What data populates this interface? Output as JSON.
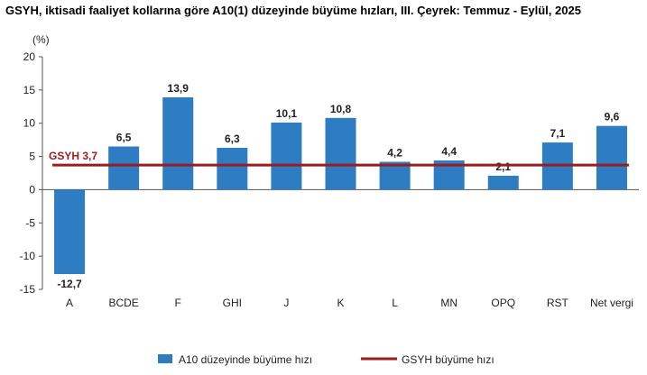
{
  "title": "GSYH, iktisadi faaliyet kollarına göre A10(1) düzeyinde büyüme hızları, III. Çeyrek: Temmuz - Eylül, 2025",
  "colors": {
    "bar": "#2e7cc2",
    "reference_line": "#9b1c1c",
    "axis": "#555555"
  },
  "chart_data": {
    "type": "bar",
    "title": "GSYH, iktisadi faaliyet kollarına göre A10(1) düzeyinde büyüme hızları, III. Çeyrek: Temmuz - Eylül, 2025",
    "unit_label": "(%)",
    "categories": [
      "A",
      "BCDE",
      "F",
      "GHI",
      "J",
      "K",
      "L",
      "MN",
      "OPQ",
      "RST",
      "Net vergi"
    ],
    "series": [
      {
        "name": "A10 düzeyinde büyüme hızı",
        "values": [
          -12.7,
          6.5,
          13.9,
          6.3,
          10.1,
          10.8,
          4.2,
          4.4,
          2.1,
          7.1,
          9.6
        ],
        "labels": [
          "-12,7",
          "6,5",
          "13,9",
          "6,3",
          "10,1",
          "10,8",
          "4,2",
          "4,4",
          "2,1",
          "7,1",
          "9,6"
        ]
      }
    ],
    "reference_line": {
      "name": "GSYH büyüme hızı",
      "value": 3.7,
      "label": "GSYH 3,7"
    },
    "ylim": [
      -15,
      20
    ],
    "yticks": [
      -15,
      -10,
      -5,
      0,
      5,
      10,
      15,
      20
    ],
    "ytick_labels": [
      "-15",
      "-10",
      "-5",
      "0",
      "5",
      "10",
      "15",
      "20"
    ],
    "grid": false,
    "legend_position": "bottom"
  }
}
